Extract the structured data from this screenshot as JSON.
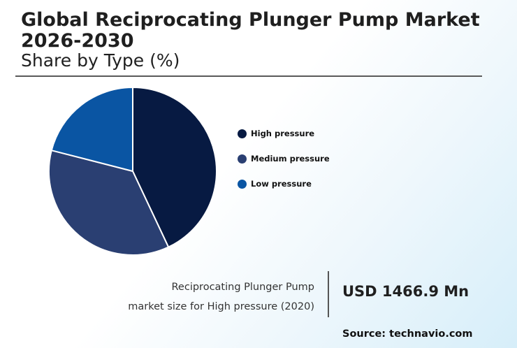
{
  "header": {
    "title": "Global Reciprocating Plunger Pump Market 2026-2030",
    "subtitle": "Share by Type (%)"
  },
  "chart_data": {
    "type": "pie",
    "title": "Global Reciprocating Plunger Pump Market 2026-2030",
    "subtitle": "Share by Type (%)",
    "categories": [
      "High pressure",
      "Medium pressure",
      "Low pressure"
    ],
    "values": [
      43,
      36,
      21
    ],
    "colors": [
      "#071a42",
      "#2a3f72",
      "#0a55a3"
    ],
    "legend_position": "right"
  },
  "legend": {
    "items": [
      {
        "label": "High pressure",
        "color": "#071a42"
      },
      {
        "label": "Medium pressure",
        "color": "#2a3f72"
      },
      {
        "label": "Low pressure",
        "color": "#0a55a3"
      }
    ]
  },
  "stat": {
    "label_line1": "Reciprocating Plunger Pump",
    "label_line2": "market size for High pressure (2020)",
    "value": "USD 1466.9 Mn"
  },
  "footer": {
    "source": "Source: technavio.com"
  }
}
